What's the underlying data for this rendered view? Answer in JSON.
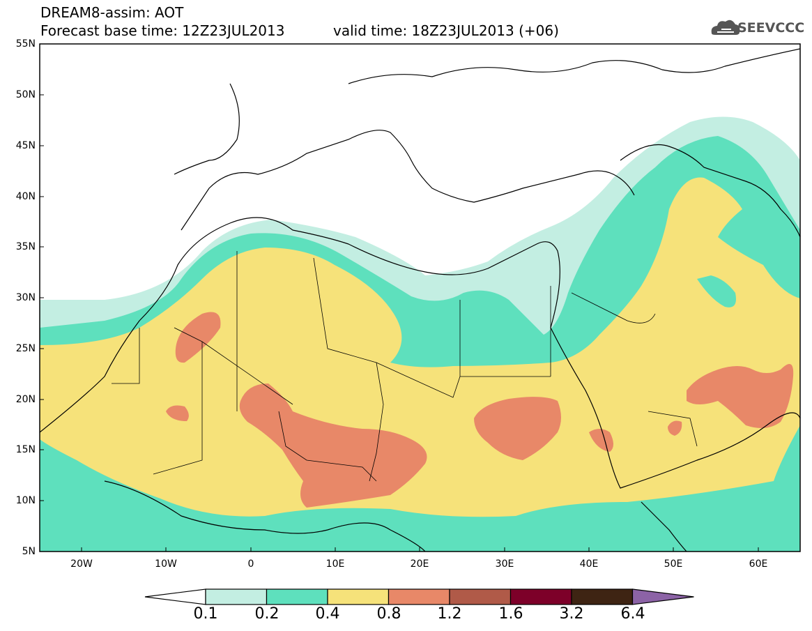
{
  "header": {
    "line1": "DREAM8-assim: AOT",
    "line2": "Forecast base time: 12Z23JUL2013",
    "line3": "valid time: 18Z23JUL2013 (+06)",
    "logo_text": "SEEVCCC"
  },
  "axes": {
    "y_labels": [
      "55N",
      "50N",
      "45N",
      "40N",
      "35N",
      "30N",
      "25N",
      "20N",
      "15N",
      "10N",
      "5N"
    ],
    "x_labels": [
      "20W",
      "10W",
      "0",
      "10E",
      "20E",
      "30E",
      "40E",
      "50E",
      "60E"
    ],
    "lon_range": [
      -25,
      65
    ],
    "lat_range": [
      5,
      55
    ]
  },
  "colorbar": {
    "labels": [
      "0.1",
      "0.2",
      "0.4",
      "0.8",
      "1.2",
      "1.6",
      "3.2",
      "6.4"
    ],
    "colors": [
      "#ffffff",
      "#c3eee2",
      "#5ee0bd",
      "#f6e27a",
      "#e88868",
      "#b05a48",
      "#7d0029",
      "#3e2413",
      "#8c63a6"
    ]
  }
}
